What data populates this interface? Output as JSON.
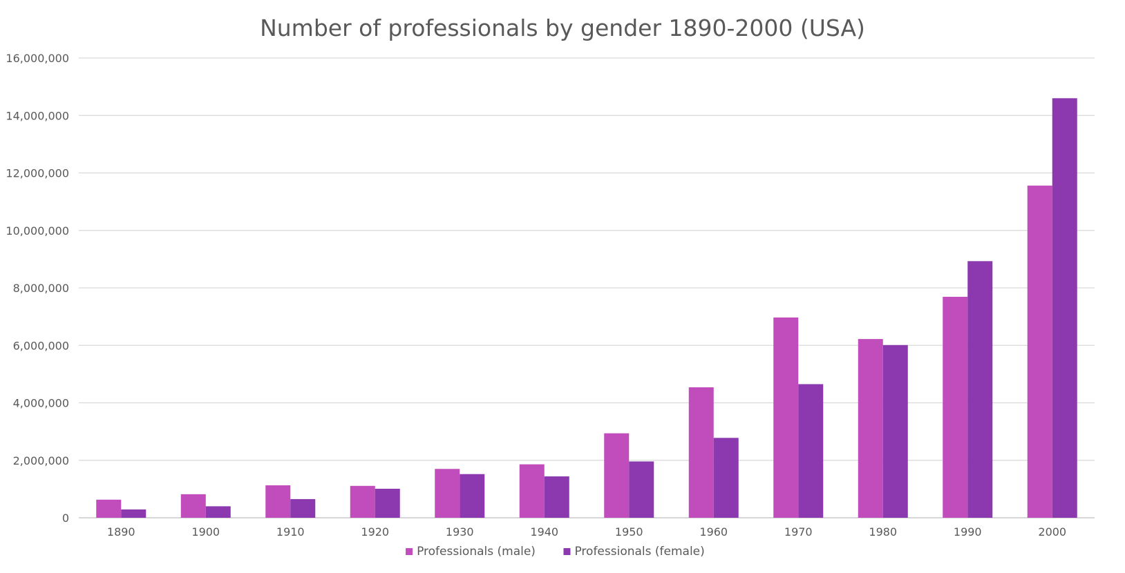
{
  "chart_data": {
    "type": "bar",
    "title": "Number of professionals by gender 1890-2000 (USA)",
    "xlabel": "",
    "ylabel": "",
    "ylim": [
      0,
      16000000
    ],
    "yticks": [
      0,
      2000000,
      4000000,
      6000000,
      8000000,
      10000000,
      12000000,
      14000000,
      16000000
    ],
    "ytick_labels": [
      "0",
      "2,000,000",
      "4,000,000",
      "6,000,000",
      "8,000,000",
      "10,000,000",
      "12,000,000",
      "14,000,000",
      "16,000,000"
    ],
    "grid": true,
    "legend_position": "bottom",
    "categories": [
      "1890",
      "1900",
      "1910",
      "1920",
      "1930",
      "1940",
      "1950",
      "1960",
      "1970",
      "1980",
      "1990",
      "2000"
    ],
    "series": [
      {
        "name": "Professionals (male)",
        "color": "#c04dbb",
        "values": [
          630000,
          820000,
          1130000,
          1110000,
          1700000,
          1860000,
          2940000,
          4540000,
          6970000,
          6220000,
          7690000,
          11560000
        ]
      },
      {
        "name": "Professionals (female)",
        "color": "#8c39b0",
        "values": [
          290000,
          400000,
          650000,
          1010000,
          1520000,
          1440000,
          1960000,
          2780000,
          4650000,
          6010000,
          8930000,
          14600000
        ]
      }
    ]
  }
}
